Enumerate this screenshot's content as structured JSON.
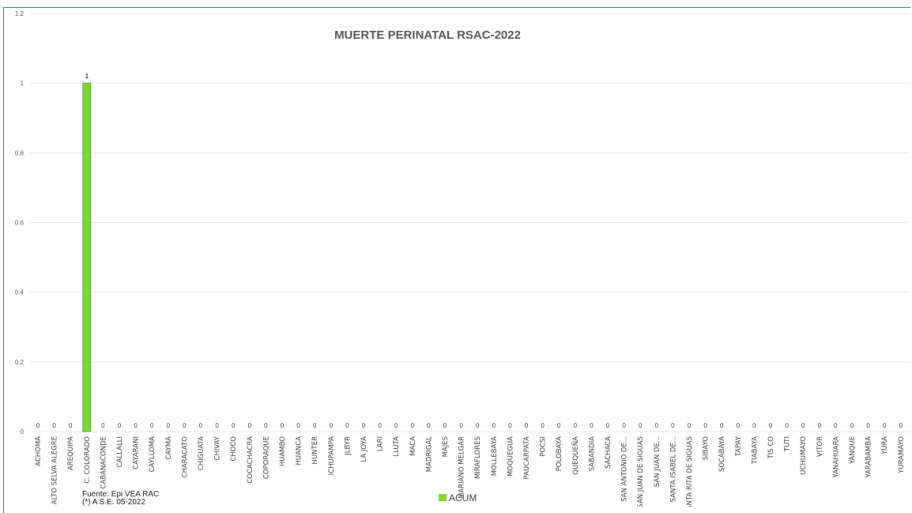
{
  "chart_data": {
    "type": "bar",
    "title": "MUERTE PERINATAL RSAC-2022",
    "xlabel": "",
    "ylabel": "",
    "ylim": [
      0,
      1.2
    ],
    "yticks": [
      "0",
      "0.2",
      "0.4",
      "0.6",
      "0.8",
      "1",
      "1.2"
    ],
    "grid": true,
    "legend_position": "bottom",
    "colors": {
      "bar": "#7fd43a",
      "bar_edge": "#4e9a1c",
      "grid": "#e6e6e6"
    },
    "categories": [
      "ACHOMA",
      "ALTO SELVA ALEGRE",
      "AREQUIPA",
      "C. COLORADO",
      "CABANACONDE",
      "CALLALLI",
      "CAYARANI",
      "CAYLLOMA",
      "CAYMA",
      "CHARACATO",
      "CHIGUATA",
      "CHIVAY",
      "CHOCO",
      "COCACHACRA",
      "COPORAQUE",
      "HUAMBO",
      "HUANCA",
      "HUNTER",
      "ICHUPAMPA",
      "JLBYR",
      "LA JOYA",
      "LARI",
      "LLUTA",
      "MACA",
      "MADRIGAL",
      "MAJES",
      "MARIANO MELGAR",
      "MIRAFLORES",
      "MOLLEBAYA",
      "MOQUEGUA",
      "PAUCARPATA",
      "POCSI",
      "POLOBAYA",
      "QUEQUEÑA",
      "SABANDIA",
      "SACHACA",
      "SAN ANTONIO DE...",
      "SAN JUAN DE SIGUAS",
      "SAN JUAN DE...",
      "SANTA ISABEL DE...",
      "SANTA RITA DE SIGUAS",
      "SIBAYO",
      "SOCABAYA",
      "TAPAY",
      "TIABAYA",
      "TIS CO",
      "TUTI",
      "UCHUMAYO",
      "VITOR",
      "YANAHUARA",
      "YANQUE",
      "YARABAMBA",
      "YURA",
      "YURAMAYO"
    ],
    "series": [
      {
        "name": "ACUM",
        "values": [
          0,
          0,
          0,
          1,
          0,
          0,
          0,
          0,
          0,
          0,
          0,
          0,
          0,
          0,
          0,
          0,
          0,
          0,
          0,
          0,
          0,
          0,
          0,
          0,
          0,
          0,
          0,
          0,
          0,
          0,
          0,
          0,
          0,
          0,
          0,
          0,
          0,
          0,
          0,
          0,
          0,
          0,
          0,
          0,
          0,
          0,
          0,
          0,
          0,
          0,
          0,
          0,
          0,
          0
        ]
      }
    ]
  },
  "footer": {
    "source_line1": "Fuente: Epi VEA RAC",
    "source_line2": "(*) A S.E. 05-2022"
  }
}
